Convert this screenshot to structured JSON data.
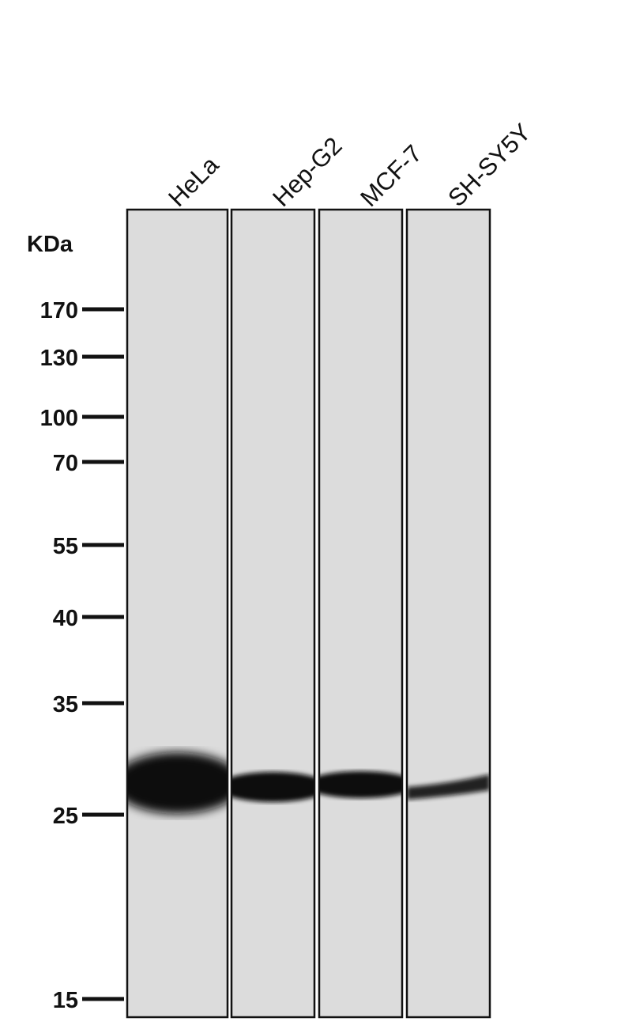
{
  "unit_label": "KDa",
  "lanes": [
    {
      "label": "HeLa",
      "band_intensity": "very strong"
    },
    {
      "label": "Hep-G2",
      "band_intensity": "strong"
    },
    {
      "label": "MCF-7",
      "band_intensity": "strong"
    },
    {
      "label": "SH-SY5Y",
      "band_intensity": "moderate"
    }
  ],
  "markers": [
    "170",
    "130",
    "100",
    "70",
    "55",
    "40",
    "35",
    "25",
    "15"
  ],
  "colors": {
    "membrane": "#dcdcdc",
    "band": "#0a0a0a",
    "text": "#111111"
  }
}
